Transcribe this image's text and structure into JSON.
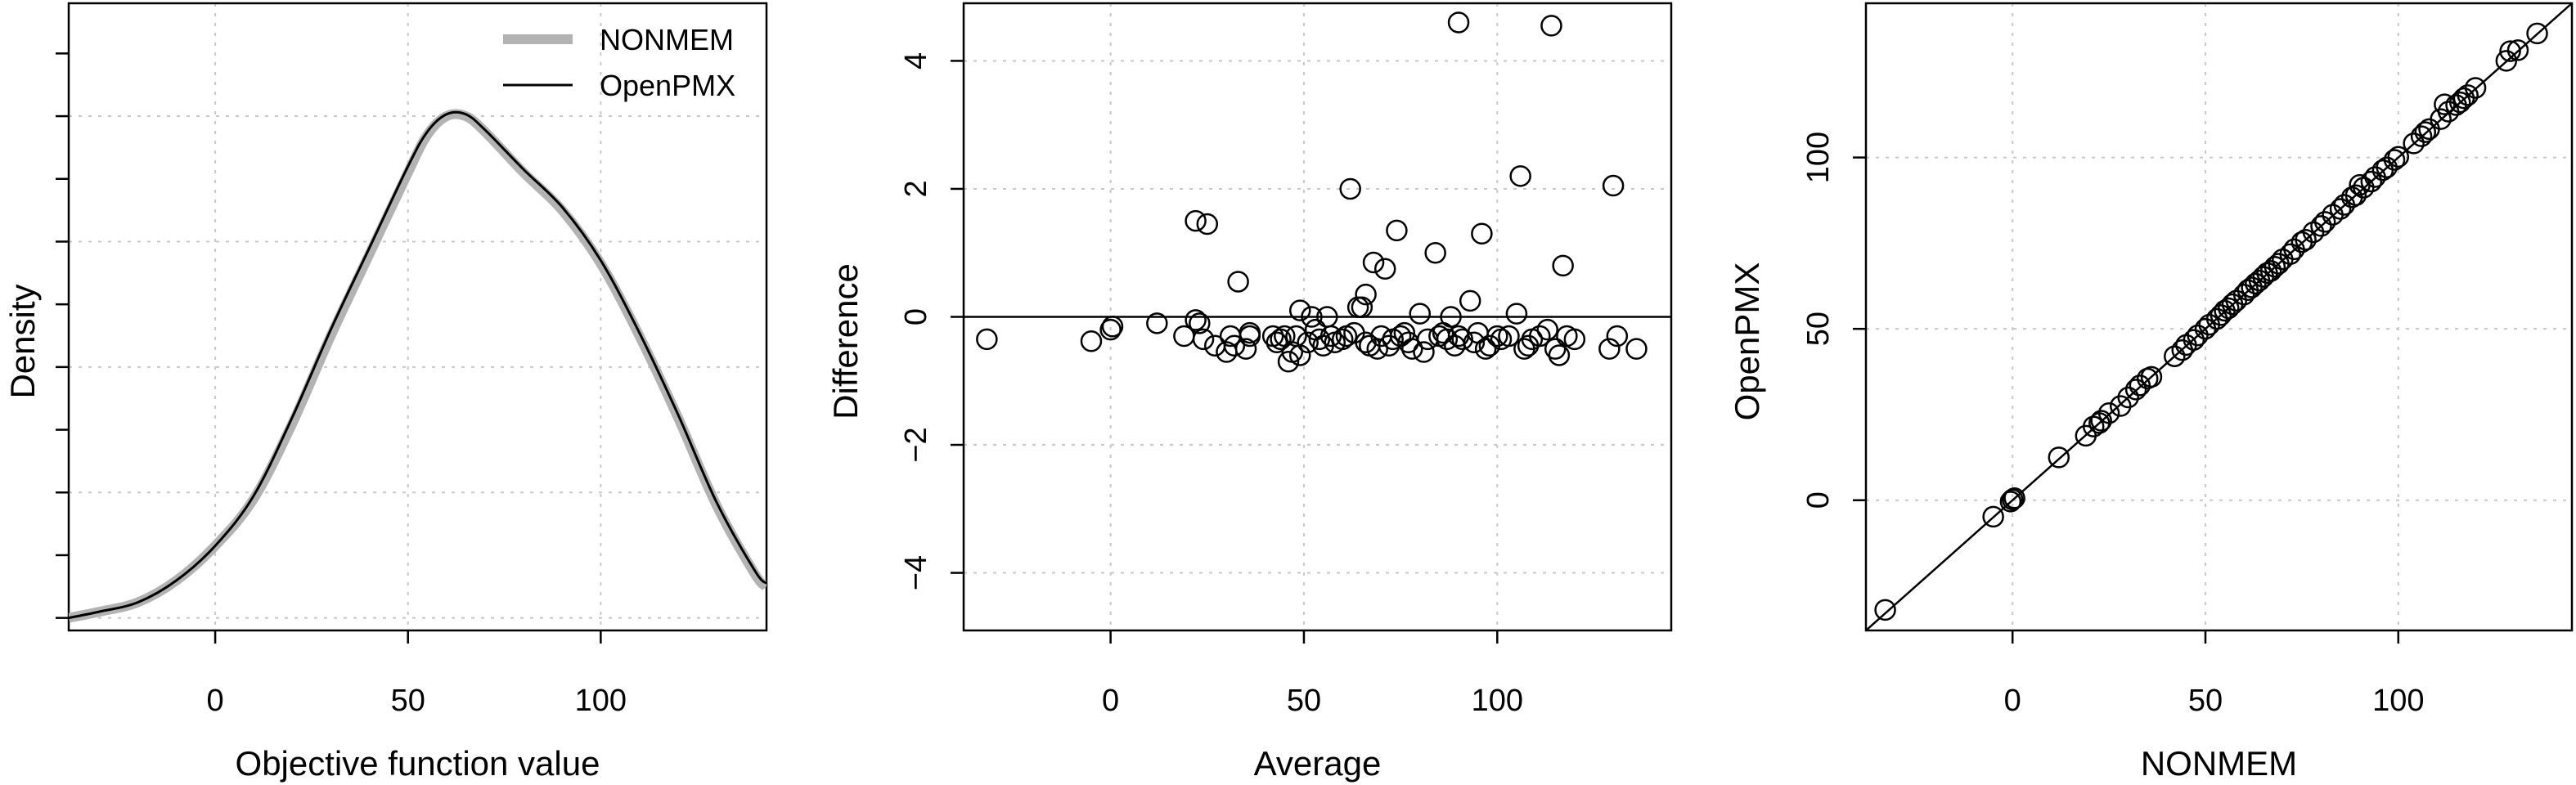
{
  "chart_data": [
    {
      "type": "line",
      "xlabel": "Objective function value",
      "ylabel": "Density",
      "xlim": [
        -38,
        143
      ],
      "ylim": [
        0,
        1.0
      ],
      "x_ticks": [
        0,
        50,
        100
      ],
      "y_ticks_unlabeled": true,
      "grid": true,
      "legend_position": "top-right",
      "series": [
        {
          "name": "NONMEM",
          "color": "#b3b3b3",
          "style": "thick",
          "x": [
            -38,
            -30,
            -20,
            -10,
            0,
            10,
            20,
            30,
            40,
            50,
            55,
            60,
            65,
            70,
            80,
            90,
            100,
            110,
            120,
            130,
            140,
            143
          ],
          "y": [
            0.02,
            0.03,
            0.045,
            0.08,
            0.135,
            0.21,
            0.33,
            0.47,
            0.6,
            0.73,
            0.79,
            0.82,
            0.82,
            0.795,
            0.73,
            0.67,
            0.585,
            0.47,
            0.34,
            0.2,
            0.09,
            0.07
          ]
        },
        {
          "name": "OpenPMX",
          "color": "#000000",
          "style": "thin",
          "x": [
            -38,
            -30,
            -20,
            -10,
            0,
            10,
            20,
            30,
            40,
            50,
            55,
            60,
            65,
            70,
            80,
            90,
            100,
            110,
            120,
            130,
            140,
            143
          ],
          "y": [
            0.02,
            0.03,
            0.045,
            0.08,
            0.135,
            0.215,
            0.34,
            0.48,
            0.61,
            0.74,
            0.795,
            0.823,
            0.823,
            0.798,
            0.735,
            0.675,
            0.59,
            0.475,
            0.345,
            0.205,
            0.095,
            0.075
          ]
        }
      ]
    },
    {
      "type": "scatter",
      "xlabel": "Average",
      "ylabel": "Difference",
      "xlim": [
        -38,
        145
      ],
      "ylim": [
        -4.9,
        4.9
      ],
      "x_ticks": [
        0,
        50,
        100
      ],
      "y_ticks": [
        -4,
        -2,
        0,
        2,
        4
      ],
      "y_tick_labels": [
        "−4",
        "−2",
        "0",
        "2",
        "4"
      ],
      "reference_line_y": 0,
      "grid": true,
      "points": [
        [
          -32,
          -0.35
        ],
        [
          -5,
          -0.38
        ],
        [
          0,
          -0.2
        ],
        [
          0.5,
          -0.15
        ],
        [
          12,
          -0.1
        ],
        [
          19,
          -0.3
        ],
        [
          22,
          1.5
        ],
        [
          22,
          -0.05
        ],
        [
          23,
          -0.1
        ],
        [
          24,
          -0.35
        ],
        [
          25,
          1.45
        ],
        [
          27,
          -0.45
        ],
        [
          30,
          -0.55
        ],
        [
          31,
          -0.3
        ],
        [
          32,
          -0.45
        ],
        [
          33,
          0.55
        ],
        [
          35,
          -0.5
        ],
        [
          36,
          -0.3
        ],
        [
          36,
          -0.25
        ],
        [
          42,
          -0.3
        ],
        [
          43,
          -0.4
        ],
        [
          44,
          -0.35
        ],
        [
          45,
          -0.3
        ],
        [
          46,
          -0.7
        ],
        [
          47,
          -0.55
        ],
        [
          48,
          -0.3
        ],
        [
          49,
          -0.6
        ],
        [
          49,
          0.1
        ],
        [
          51,
          -0.4
        ],
        [
          52,
          0.0
        ],
        [
          53,
          -0.2
        ],
        [
          54,
          -0.35
        ],
        [
          55,
          -0.45
        ],
        [
          56,
          0.0
        ],
        [
          57,
          -0.3
        ],
        [
          58,
          -0.4
        ],
        [
          60,
          -0.35
        ],
        [
          61,
          -0.3
        ],
        [
          62,
          2.0
        ],
        [
          63,
          -0.25
        ],
        [
          64,
          0.15
        ],
        [
          65,
          0.15
        ],
        [
          66,
          0.35
        ],
        [
          66,
          -0.4
        ],
        [
          67,
          -0.45
        ],
        [
          68,
          0.85
        ],
        [
          69,
          -0.5
        ],
        [
          70,
          -0.3
        ],
        [
          71,
          0.75
        ],
        [
          72,
          -0.45
        ],
        [
          73,
          -0.35
        ],
        [
          74,
          1.35
        ],
        [
          75,
          -0.3
        ],
        [
          76,
          -0.25
        ],
        [
          77,
          -0.4
        ],
        [
          78,
          -0.5
        ],
        [
          80,
          0.05
        ],
        [
          81,
          -0.55
        ],
        [
          82,
          -0.35
        ],
        [
          84,
          1.0
        ],
        [
          85,
          -0.3
        ],
        [
          86,
          -0.25
        ],
        [
          87,
          -0.35
        ],
        [
          88,
          0.0
        ],
        [
          89,
          -0.45
        ],
        [
          90,
          -0.3
        ],
        [
          90,
          4.6
        ],
        [
          91,
          -0.35
        ],
        [
          93,
          0.25
        ],
        [
          94,
          -0.4
        ],
        [
          95,
          -0.25
        ],
        [
          96,
          1.3
        ],
        [
          97,
          -0.5
        ],
        [
          98,
          -0.45
        ],
        [
          100,
          -0.3
        ],
        [
          101,
          -0.35
        ],
        [
          103,
          -0.3
        ],
        [
          105,
          0.05
        ],
        [
          106,
          2.2
        ],
        [
          107,
          -0.5
        ],
        [
          108,
          -0.45
        ],
        [
          109,
          -0.35
        ],
        [
          111,
          -0.3
        ],
        [
          113,
          -0.2
        ],
        [
          114,
          4.55
        ],
        [
          115,
          -0.5
        ],
        [
          116,
          -0.6
        ],
        [
          117,
          0.8
        ],
        [
          118,
          -0.3
        ],
        [
          120,
          -0.35
        ],
        [
          129,
          -0.5
        ],
        [
          130,
          2.05
        ],
        [
          131,
          -0.3
        ],
        [
          136,
          -0.5
        ]
      ]
    },
    {
      "type": "scatter",
      "xlabel": "NONMEM",
      "ylabel": "OpenPMX",
      "xlim": [
        -38,
        145
      ],
      "ylim": [
        -38,
        145
      ],
      "x_ticks": [
        0,
        50,
        100
      ],
      "y_ticks": [
        0,
        50,
        100
      ],
      "identity_line": true,
      "grid": true,
      "points": [
        [
          -33,
          -32
        ],
        [
          -5,
          -4.8
        ],
        [
          -0.5,
          -0.4
        ],
        [
          0,
          0.2
        ],
        [
          0.5,
          0.6
        ],
        [
          12,
          12.5
        ],
        [
          19,
          18.8
        ],
        [
          21,
          21.5
        ],
        [
          22.5,
          22.5
        ],
        [
          23,
          23.2
        ],
        [
          25,
          25.4
        ],
        [
          28,
          27.5
        ],
        [
          30,
          30
        ],
        [
          32,
          32.3
        ],
        [
          33,
          33.5
        ],
        [
          35,
          35.5
        ],
        [
          36,
          36
        ],
        [
          42,
          42
        ],
        [
          44,
          43.8
        ],
        [
          45,
          45.3
        ],
        [
          47,
          46.8
        ],
        [
          48,
          48.1
        ],
        [
          50,
          50
        ],
        [
          51,
          51.2
        ],
        [
          53,
          52.9
        ],
        [
          54,
          54
        ],
        [
          55,
          55.3
        ],
        [
          56,
          56
        ],
        [
          57,
          57.2
        ],
        [
          58,
          58.2
        ],
        [
          60,
          60
        ],
        [
          61,
          61.3
        ],
        [
          62,
          62.1
        ],
        [
          63,
          63.2
        ],
        [
          64,
          64.1
        ],
        [
          65,
          65.2
        ],
        [
          66,
          66.3
        ],
        [
          67,
          66.9
        ],
        [
          68,
          68.1
        ],
        [
          69,
          69
        ],
        [
          70,
          70.3
        ],
        [
          72,
          71.8
        ],
        [
          73,
          73.2
        ],
        [
          75,
          75.3
        ],
        [
          76,
          76
        ],
        [
          78,
          78.2
        ],
        [
          80,
          80
        ],
        [
          81,
          81.2
        ],
        [
          83,
          83.3
        ],
        [
          85,
          85
        ],
        [
          86,
          86.2
        ],
        [
          88,
          88.4
        ],
        [
          89,
          89
        ],
        [
          90,
          92
        ],
        [
          91,
          91.2
        ],
        [
          93,
          93
        ],
        [
          94,
          94.3
        ],
        [
          96,
          96.3
        ],
        [
          97,
          97.1
        ],
        [
          99,
          99.3
        ],
        [
          100,
          100.2
        ],
        [
          104,
          104.1
        ],
        [
          106,
          106.2
        ],
        [
          107,
          107.4
        ],
        [
          108,
          108.3
        ],
        [
          111,
          111.2
        ],
        [
          112,
          115.5
        ],
        [
          113,
          113.4
        ],
        [
          115,
          115.3
        ],
        [
          116,
          116.1
        ],
        [
          117,
          117.3
        ],
        [
          118,
          118.2
        ],
        [
          120,
          120.3
        ],
        [
          128,
          128.2
        ],
        [
          129,
          131
        ],
        [
          131,
          131.3
        ],
        [
          136,
          136.2
        ]
      ]
    }
  ]
}
